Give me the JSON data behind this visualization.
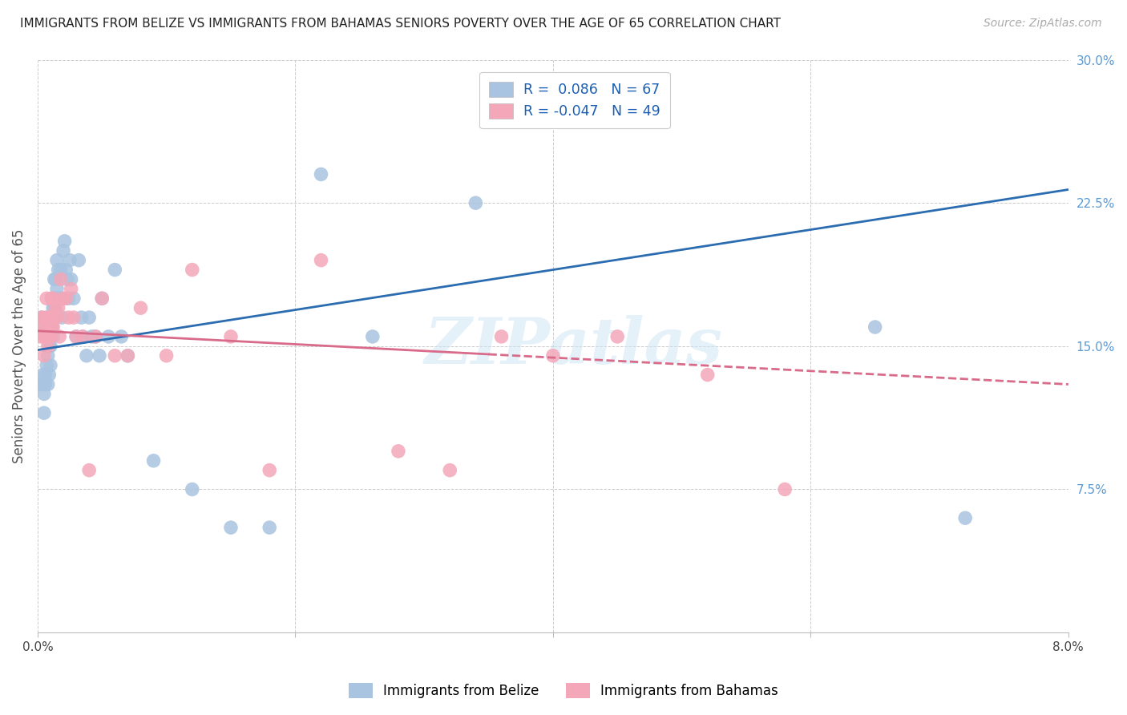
{
  "title": "IMMIGRANTS FROM BELIZE VS IMMIGRANTS FROM BAHAMAS SENIORS POVERTY OVER THE AGE OF 65 CORRELATION CHART",
  "source": "Source: ZipAtlas.com",
  "ylabel": "Seniors Poverty Over the Age of 65",
  "x_min": 0.0,
  "x_max": 0.08,
  "y_min": 0.0,
  "y_max": 0.3,
  "belize_R": 0.086,
  "belize_N": 67,
  "bahamas_R": -0.047,
  "bahamas_N": 49,
  "belize_color": "#a8c4e0",
  "bahamas_color": "#f4a7b9",
  "belize_line_color": "#2b6cb0",
  "bahamas_line_color": "#d96b8a",
  "legend_label_belize": "Immigrants from Belize",
  "legend_label_bahamas": "Immigrants from Bahamas",
  "watermark": "ZIPatlas",
  "belize_x": [
    0.0002,
    0.0003,
    0.0004,
    0.0004,
    0.0005,
    0.0005,
    0.0005,
    0.0006,
    0.0006,
    0.0007,
    0.0007,
    0.0007,
    0.0008,
    0.0008,
    0.0009,
    0.0009,
    0.001,
    0.001,
    0.001,
    0.0011,
    0.0011,
    0.0011,
    0.0012,
    0.0012,
    0.0013,
    0.0013,
    0.0014,
    0.0014,
    0.0015,
    0.0015,
    0.0016,
    0.0016,
    0.0017,
    0.0018,
    0.0018,
    0.0019,
    0.002,
    0.0021,
    0.0022,
    0.0023,
    0.0024,
    0.0025,
    0.0026,
    0.0028,
    0.003,
    0.0032,
    0.0034,
    0.0035,
    0.0038,
    0.004,
    0.0042,
    0.0045,
    0.0048,
    0.005,
    0.0055,
    0.006,
    0.0065,
    0.007,
    0.009,
    0.012,
    0.015,
    0.018,
    0.022,
    0.026,
    0.034,
    0.065,
    0.072
  ],
  "belize_y": [
    0.13,
    0.165,
    0.16,
    0.135,
    0.13,
    0.125,
    0.115,
    0.135,
    0.13,
    0.16,
    0.155,
    0.14,
    0.145,
    0.13,
    0.15,
    0.135,
    0.155,
    0.15,
    0.14,
    0.175,
    0.165,
    0.16,
    0.17,
    0.155,
    0.185,
    0.17,
    0.185,
    0.175,
    0.195,
    0.18,
    0.19,
    0.175,
    0.175,
    0.19,
    0.175,
    0.165,
    0.2,
    0.205,
    0.19,
    0.185,
    0.175,
    0.195,
    0.185,
    0.175,
    0.155,
    0.195,
    0.165,
    0.155,
    0.145,
    0.165,
    0.155,
    0.155,
    0.145,
    0.175,
    0.155,
    0.19,
    0.155,
    0.145,
    0.09,
    0.075,
    0.055,
    0.055,
    0.24,
    0.155,
    0.225,
    0.16,
    0.06
  ],
  "bahamas_x": [
    0.0002,
    0.0003,
    0.0004,
    0.0005,
    0.0005,
    0.0006,
    0.0006,
    0.0007,
    0.0007,
    0.0008,
    0.0008,
    0.0009,
    0.001,
    0.001,
    0.0011,
    0.0011,
    0.0012,
    0.0012,
    0.0013,
    0.0014,
    0.0015,
    0.0016,
    0.0017,
    0.0018,
    0.002,
    0.0022,
    0.0024,
    0.0026,
    0.0028,
    0.003,
    0.0035,
    0.004,
    0.0045,
    0.005,
    0.006,
    0.007,
    0.008,
    0.01,
    0.012,
    0.015,
    0.018,
    0.022,
    0.028,
    0.032,
    0.036,
    0.04,
    0.045,
    0.052,
    0.058
  ],
  "bahamas_y": [
    0.155,
    0.165,
    0.16,
    0.155,
    0.145,
    0.165,
    0.155,
    0.175,
    0.16,
    0.165,
    0.15,
    0.155,
    0.165,
    0.155,
    0.175,
    0.16,
    0.175,
    0.16,
    0.165,
    0.17,
    0.165,
    0.17,
    0.155,
    0.185,
    0.175,
    0.175,
    0.165,
    0.18,
    0.165,
    0.155,
    0.155,
    0.085,
    0.155,
    0.175,
    0.145,
    0.145,
    0.17,
    0.145,
    0.19,
    0.155,
    0.085,
    0.195,
    0.095,
    0.085,
    0.155,
    0.145,
    0.155,
    0.135,
    0.075
  ],
  "belize_line_intercept": 0.148,
  "belize_line_slope": 1.05,
  "bahamas_line_intercept": 0.158,
  "bahamas_line_slope": -0.35,
  "bahamas_data_extent": 0.035
}
